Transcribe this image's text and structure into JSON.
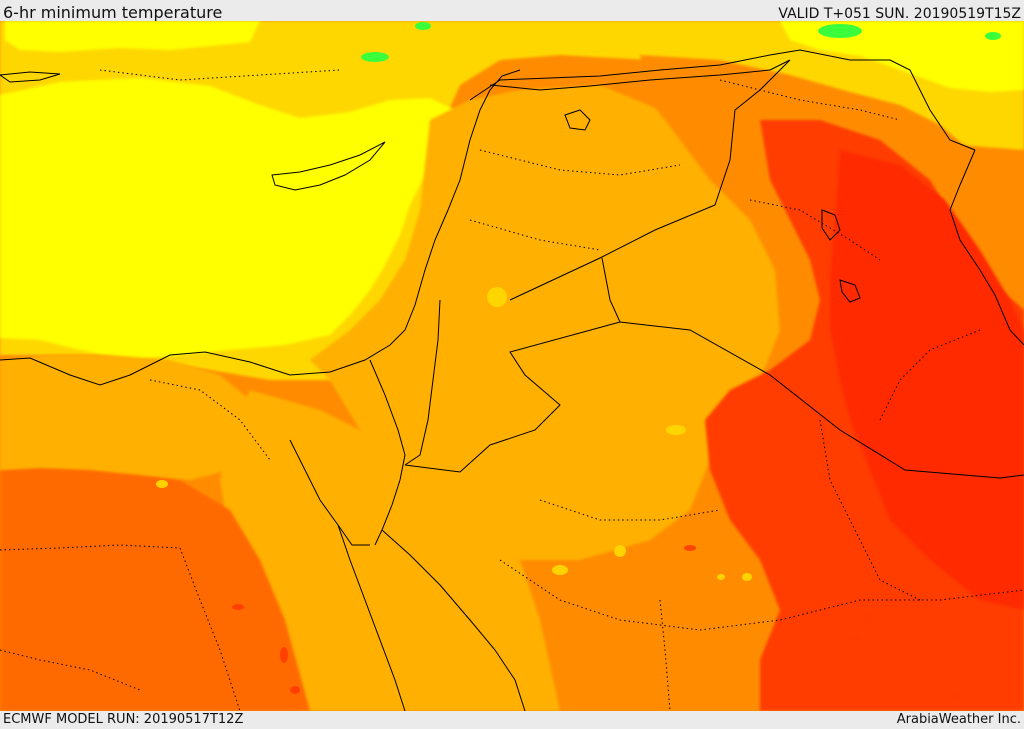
{
  "header": {
    "title": "6-hr minimum temperature",
    "valid_text": "VALID T+051 SUN. 20190519T15Z"
  },
  "footer": {
    "model_run": "ECMWF MODEL RUN: 20190517T12Z",
    "credit": "ArabiaWeather Inc."
  },
  "map": {
    "colors": {
      "yellow": "#ffff00",
      "yellow_orange": "#ffd700",
      "light_orange": "#ffb000",
      "orange": "#ff8c00",
      "dark_orange": "#ff6a00",
      "red_orange": "#ff3c00",
      "red": "#ff2a00",
      "green": "#3cff3c",
      "border": "#000000"
    }
  }
}
